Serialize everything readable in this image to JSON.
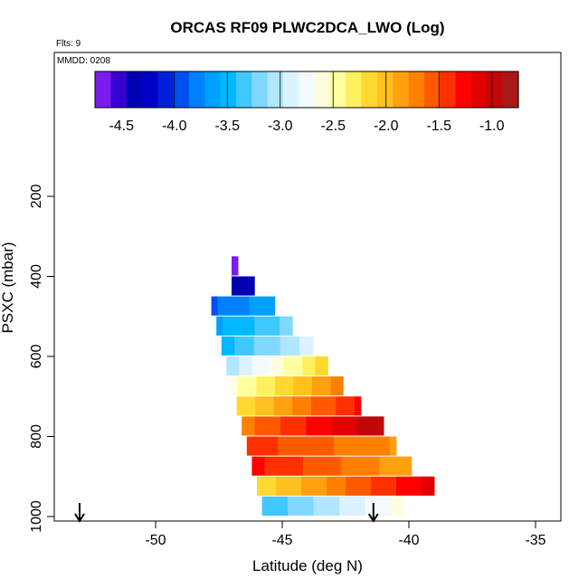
{
  "chart_data": {
    "type": "heatmap",
    "title": "ORCAS RF09 PLWC2DCA_LWO (Log)",
    "flights_label": "Flts: 9",
    "date_label": "MMDD: 0208",
    "xlabel": "Latitude (deg N)",
    "ylabel": "PSXC (mbar)",
    "xlim": [
      -54,
      -34
    ],
    "ylim": [
      1000,
      0
    ],
    "x_ticks": [
      "-50",
      "-45",
      "-40",
      "-35"
    ],
    "y_ticks": [
      "200",
      "400",
      "600",
      "800",
      "1000"
    ],
    "colorbar": {
      "range": [
        -4.75,
        -0.75
      ],
      "ticks": [
        "-4.5",
        "-4.0",
        "-3.5",
        "-3.0",
        "-2.5",
        "-2.0",
        "-1.5",
        "-1.0"
      ],
      "colors": [
        "#7a1cf0",
        "#3a00d8",
        "#0000b0",
        "#0000c8",
        "#0020d8",
        "#0050f0",
        "#0080ff",
        "#00a0ff",
        "#00b8ff",
        "#40c8ff",
        "#80d8ff",
        "#b0e6ff",
        "#dcf2ff",
        "#f4fbff",
        "#ffffe0",
        "#ffffa0",
        "#fff060",
        "#ffd830",
        "#ffc020",
        "#ffa010",
        "#ff8000",
        "#ff5a00",
        "#ff3000",
        "#ff0000",
        "#e00000",
        "#c00808",
        "#a81818"
      ]
    },
    "bins": [
      {
        "p": 375,
        "lat0": -47.0,
        "lat1": -46.75,
        "v0": -4.7,
        "v1": -4.6
      },
      {
        "p": 425,
        "lat0": -47.0,
        "lat1": -46.1,
        "v0": -4.4,
        "v1": -4.3
      },
      {
        "p": 475,
        "lat0": -47.8,
        "lat1": -45.3,
        "v0": -3.9,
        "v1": -3.6
      },
      {
        "p": 525,
        "lat0": -47.6,
        "lat1": -44.6,
        "v0": -3.6,
        "v1": -3.2
      },
      {
        "p": 575,
        "lat0": -47.4,
        "lat1": -43.8,
        "v0": -3.5,
        "v1": -2.9
      },
      {
        "p": 625,
        "lat0": -47.2,
        "lat1": -43.2,
        "v0": -3.1,
        "v1": -2.1
      },
      {
        "p": 675,
        "lat0": -47.0,
        "lat1": -42.6,
        "v0": -2.6,
        "v1": -1.7
      },
      {
        "p": 725,
        "lat0": -46.8,
        "lat1": -41.9,
        "v0": -2.2,
        "v1": -1.3
      },
      {
        "p": 775,
        "lat0": -46.6,
        "lat1": -41.0,
        "v0": -1.7,
        "v1": -0.9
      },
      {
        "p": 825,
        "lat0": -46.4,
        "lat1": -40.5,
        "v0": -1.4,
        "v1": -1.8
      },
      {
        "p": 875,
        "lat0": -46.2,
        "lat1": -39.9,
        "v0": -1.3,
        "v1": -1.9
      },
      {
        "p": 925,
        "lat0": -46.0,
        "lat1": -39.0,
        "v0": -2.2,
        "v1": -1.1
      },
      {
        "p": 975,
        "lat0": -45.8,
        "lat1": -40.2,
        "v0": -3.4,
        "v1": -2.6
      }
    ],
    "markers": [
      -53.0,
      -41.4
    ]
  }
}
